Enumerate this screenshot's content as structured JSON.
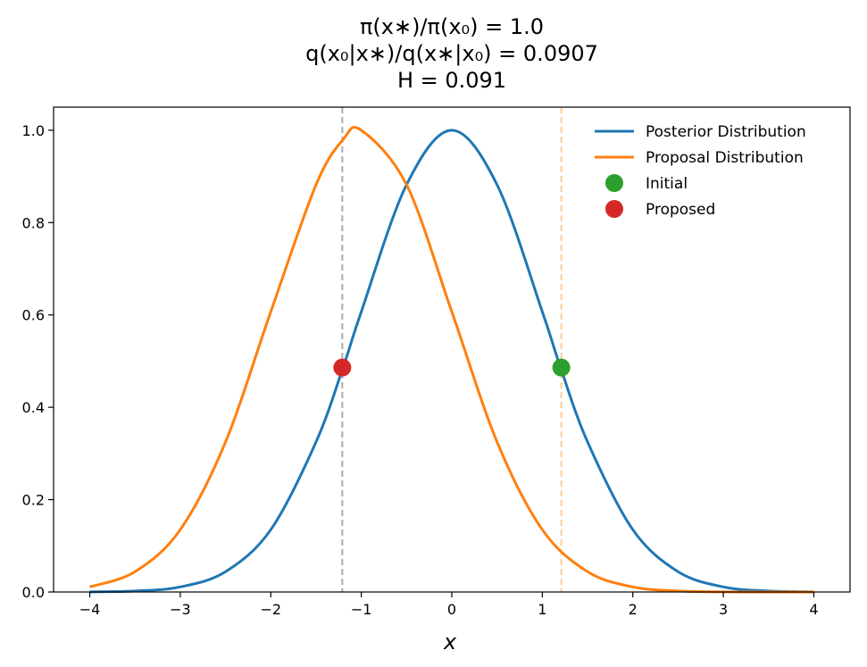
{
  "chart_data": {
    "type": "line",
    "title_lines": [
      "π(x∗)/π(x₀) = 1.0",
      "q(x₀|x∗)/q(x∗|x₀) = 0.0907",
      "H = 0.091"
    ],
    "xlabel": "x",
    "ylabel": "",
    "xlim": [
      -4.4,
      4.4
    ],
    "ylim": [
      0.0,
      1.05
    ],
    "xticks": [
      -4,
      -3,
      -2,
      -1,
      0,
      1,
      2,
      3,
      4
    ],
    "xtick_labels": [
      "−4",
      "−3",
      "−2",
      "−1",
      "0",
      "1",
      "2",
      "3",
      "4"
    ],
    "yticks": [
      0.0,
      0.2,
      0.4,
      0.6,
      0.8,
      1.0
    ],
    "ytick_labels": [
      "0.0",
      "0.2",
      "0.4",
      "0.6",
      "0.8",
      "1.0"
    ],
    "grid": false,
    "legend_position": "top-right",
    "series": [
      {
        "name": "Posterior Distribution",
        "kind": "line",
        "color": "#1f77b4",
        "x": [
          -4.0,
          -3.5,
          -3.0,
          -2.5,
          -2.0,
          -1.5,
          -1.2,
          -1.0,
          -0.5,
          0.0,
          0.5,
          1.0,
          1.2,
          1.5,
          2.0,
          2.5,
          3.0,
          3.5,
          4.0
        ],
        "y": [
          0.0003,
          0.0022,
          0.011,
          0.044,
          0.135,
          0.325,
          0.487,
          0.607,
          0.882,
          1.0,
          0.882,
          0.607,
          0.487,
          0.325,
          0.135,
          0.044,
          0.011,
          0.0022,
          0.0003
        ]
      },
      {
        "name": "Proposal Distribution",
        "kind": "line",
        "color": "#ff7f0e",
        "x": [
          -4.0,
          -3.5,
          -3.0,
          -2.5,
          -2.0,
          -1.5,
          -1.2,
          -1.0,
          -0.5,
          0.0,
          0.5,
          1.0,
          1.5,
          2.0,
          2.5,
          3.0,
          3.5,
          4.0
        ],
        "y": [
          0.011,
          0.044,
          0.135,
          0.325,
          0.607,
          0.882,
          0.98,
          1.0,
          0.882,
          0.607,
          0.325,
          0.135,
          0.044,
          0.011,
          0.0022,
          0.0003,
          3e-05,
          4e-06
        ]
      },
      {
        "name": "Initial",
        "kind": "point",
        "color": "#2ca02c",
        "x": [
          1.21
        ],
        "y": [
          0.486
        ]
      },
      {
        "name": "Proposed",
        "kind": "point",
        "color": "#d62728",
        "x": [
          -1.21
        ],
        "y": [
          0.486
        ]
      }
    ],
    "vlines": [
      {
        "x": -1.21,
        "color": "#aaaaaa"
      },
      {
        "x": 1.21,
        "color": "#ffcc99"
      }
    ]
  }
}
